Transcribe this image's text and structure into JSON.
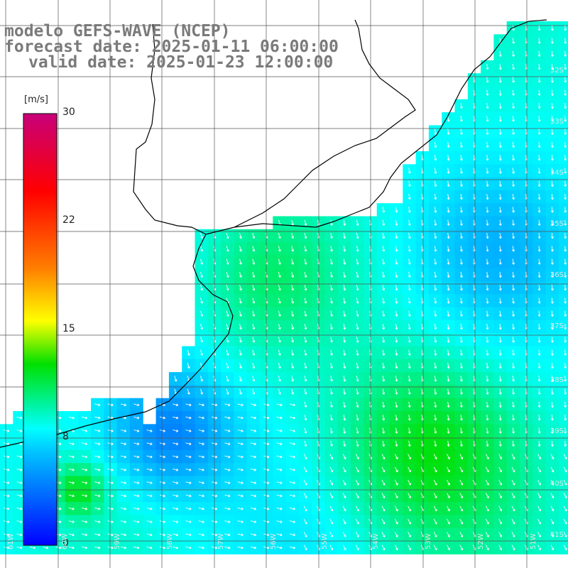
{
  "title": {
    "model": "modelo GEFS-WAVE (NCEP)",
    "forecast": "forecast date: 2025-01-11 06:00:00",
    "valid": "valid date: 2025-01-23 12:00:00"
  },
  "colorbar": {
    "unit": "[m/s]",
    "ticks": [
      "30",
      "22",
      "15",
      "8",
      "0"
    ],
    "min": 0,
    "max": 30,
    "colors": [
      "#0000ff",
      "#00c8ff",
      "#00ff00",
      "#ffff00",
      "#ff8000",
      "#ff0000",
      "#c8007a"
    ]
  },
  "grid": {
    "lat_labels": [
      "32S",
      "33S",
      "34S",
      "35S",
      "36S",
      "37S",
      "38S",
      "39S",
      "40S",
      "41S"
    ],
    "lon_labels": [
      "61W",
      "60W",
      "59W",
      "58W",
      "57W",
      "56W",
      "55W",
      "54W",
      "53W",
      "52W",
      "51W"
    ]
  },
  "colors": {
    "gridline": "#555555",
    "coast": "#000000",
    "arrow": "#ffffff",
    "title": "#7a7a7a"
  }
}
